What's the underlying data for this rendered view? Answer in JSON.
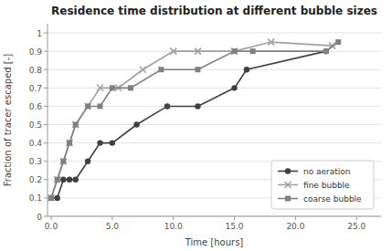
{
  "chart_data": {
    "type": "line",
    "title": "Residence time distribution at different bubble sizes",
    "x_label": "Time [hours]",
    "y_label": "Fraction of tracer escaped [-]",
    "xlim": [
      -0.3,
      27
    ],
    "ylim": [
      0,
      1.05
    ],
    "xticks": [
      {
        "value": 0.0,
        "label": "0.0"
      },
      {
        "value": 5.0,
        "label": "5.0"
      },
      {
        "value": 10.0,
        "label": "10.0"
      },
      {
        "value": 15.0,
        "label": "15.0"
      },
      {
        "value": 20.0,
        "label": "20.0"
      },
      {
        "value": 25.0,
        "label": "25.0"
      }
    ],
    "yticks": [
      0,
      0.1,
      0.2,
      0.3,
      0.4,
      0.5,
      0.6,
      0.7,
      0.8,
      0.9,
      1
    ],
    "grid": true,
    "legend": "lower right",
    "series": [
      {
        "name": "no aeration",
        "color": "#404040",
        "marker": "circle",
        "x": [
          0.0,
          0.5,
          1.0,
          1.5,
          2.0,
          3.0,
          4.0,
          5.0,
          7.0,
          9.5,
          12.0,
          15.0,
          16.0,
          22.5
        ],
        "values": [
          0.1,
          0.1,
          0.2,
          0.2,
          0.2,
          0.3,
          0.4,
          0.4,
          0.5,
          0.6,
          0.6,
          0.7,
          0.8,
          0.9
        ]
      },
      {
        "name": "fine bubble",
        "color": "#a0a0a0",
        "marker": "x",
        "x": [
          0.0,
          0.5,
          1.0,
          1.5,
          2.0,
          3.0,
          4.0,
          5.5,
          7.5,
          10.0,
          12.0,
          15.0,
          18.0,
          23.0
        ],
        "values": [
          0.1,
          0.2,
          0.3,
          0.4,
          0.5,
          0.6,
          0.7,
          0.7,
          0.8,
          0.9,
          0.9,
          0.9,
          0.95,
          0.93
        ]
      },
      {
        "name": "coarse bubble",
        "color": "#808080",
        "marker": "square",
        "x": [
          0.0,
          0.5,
          1.0,
          1.5,
          2.0,
          3.0,
          4.0,
          5.0,
          6.5,
          9.0,
          12.0,
          15.0,
          16.5,
          22.5,
          23.5
        ],
        "values": [
          0.1,
          0.2,
          0.3,
          0.4,
          0.5,
          0.6,
          0.6,
          0.7,
          0.7,
          0.8,
          0.8,
          0.9,
          0.9,
          0.9,
          0.95
        ]
      }
    ]
  }
}
